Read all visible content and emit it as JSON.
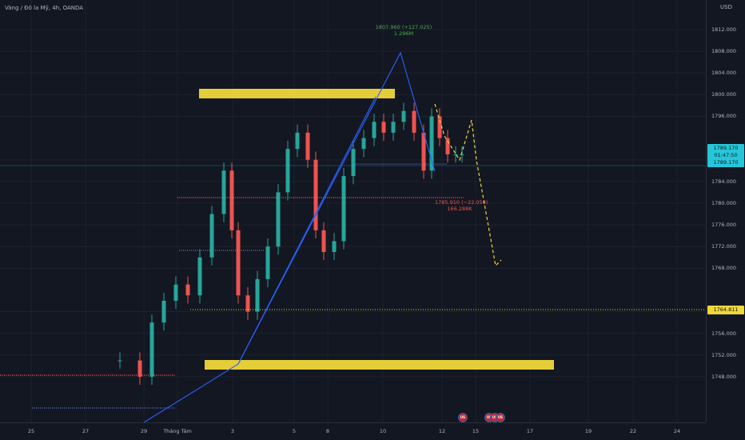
{
  "header": {
    "symbol_title": "Vàng / Đô la Mỹ, 4h, OANDA"
  },
  "price_axis": {
    "currency": "USD",
    "ticks": [
      "1812.000",
      "1808.000",
      "1804.000",
      "1800.000",
      "1796.000",
      "1788.000",
      "1784.000",
      "1780.000",
      "1776.000",
      "1772.000",
      "1768.000",
      "1760.000",
      "1756.000",
      "1752.000",
      "1748.000"
    ],
    "tick_values": [
      1812,
      1808,
      1804,
      1800,
      1796,
      1788,
      1784,
      1780,
      1776,
      1772,
      1768,
      1760,
      1756,
      1752,
      1748
    ],
    "current_price": "1789.170",
    "countdown": "01:47:50",
    "current_price_repeat": "1789.170",
    "level_tag": "1764.811"
  },
  "time_axis": {
    "labels": [
      "25",
      "27",
      "29",
      "Tháng Tám",
      "3",
      "5",
      "8",
      "10",
      "12",
      "15",
      "17",
      "19",
      "22",
      "24"
    ]
  },
  "annotations": {
    "high_label": "1807.960 (+127.025)",
    "high_volume": "1.296M",
    "low_label": "1785.910 (−22.050)",
    "low_volume": "166.288K"
  },
  "events": {
    "flag_1": "US",
    "flag_2": "US",
    "flag_3": "US",
    "flag_4": "US"
  },
  "colors": {
    "background": "#131722",
    "up_candle": "#26a69a",
    "down_candle": "#ef5350",
    "zone": "#f0d73a",
    "trendline": "#2962ff",
    "current_price": "#26c6da"
  }
}
